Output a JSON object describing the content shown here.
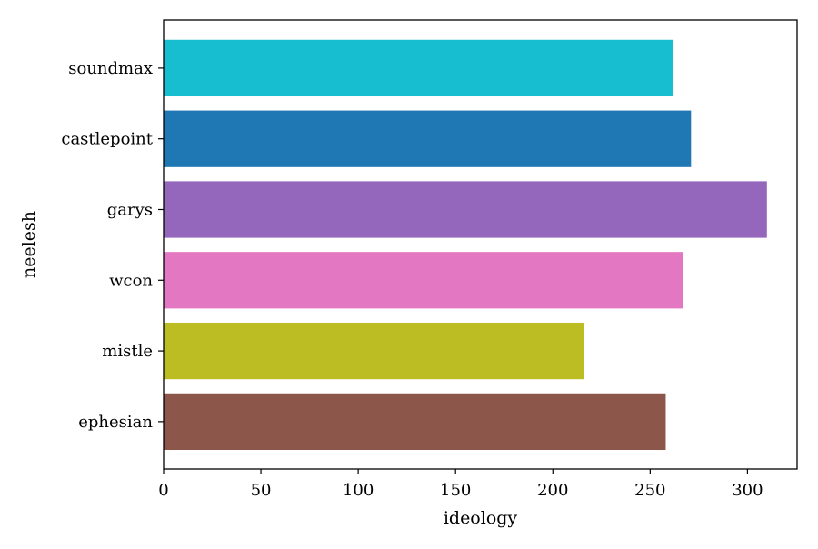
{
  "chart_data": {
    "type": "bar",
    "orientation": "horizontal",
    "categories": [
      "soundmax",
      "castlepoint",
      "garys",
      "wcon",
      "mistle",
      "ephesian"
    ],
    "values": [
      262,
      271,
      310,
      267,
      216,
      258
    ],
    "colors": [
      "#17becf",
      "#1f77b4",
      "#9467bd",
      "#e377c2",
      "#bcbd22",
      "#8c564b"
    ],
    "xlabel": "ideology",
    "ylabel": "neelesh",
    "xlim": [
      0,
      325.5
    ],
    "xticks": [
      0,
      50,
      100,
      150,
      200,
      250,
      300
    ],
    "grid": false,
    "legend": false
  }
}
